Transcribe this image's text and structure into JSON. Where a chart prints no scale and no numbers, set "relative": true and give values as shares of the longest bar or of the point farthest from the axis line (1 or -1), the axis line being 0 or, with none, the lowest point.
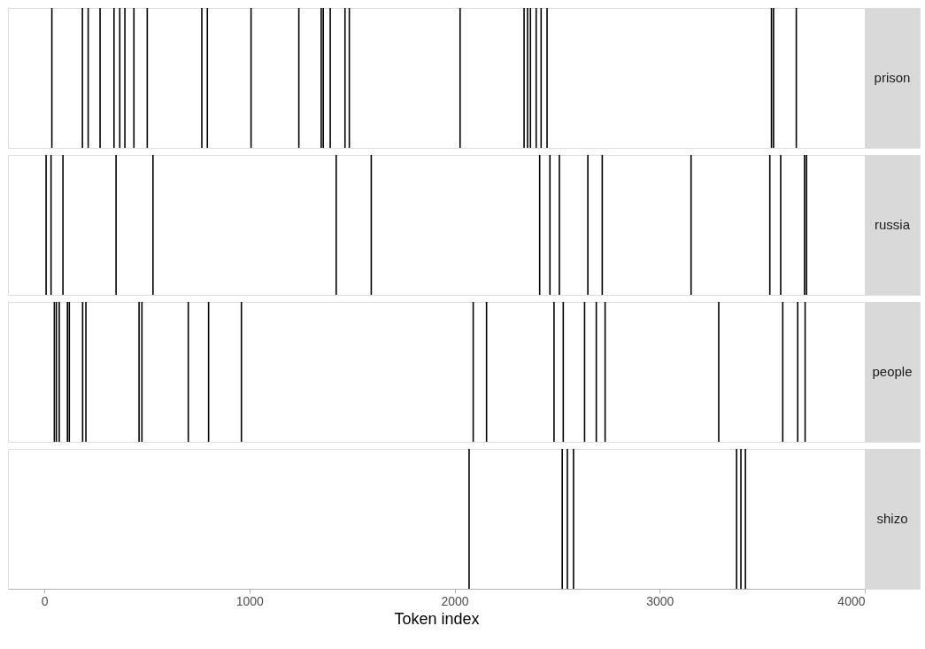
{
  "chart_data": [
    {
      "type": "bar",
      "relative": true,
      "xlim": [
        -177,
        4000
      ],
      "xticks": [
        0,
        1000,
        2000,
        3000,
        4000
      ],
      "tick_labels": false,
      "grid": false,
      "x": [
        37,
        186,
        214,
        272,
        340,
        368,
        393,
        437,
        502,
        768,
        795,
        1008,
        1241,
        1350,
        1360,
        1394,
        1466,
        1487,
        2027,
        2339,
        2356,
        2370,
        2398,
        2422,
        2451,
        3545,
        3555,
        3666
      ],
      "series": [
        {
          "name": "prison",
          "color": "#000000",
          "values": [
            1,
            1,
            1,
            1,
            1,
            1,
            1,
            1,
            1,
            1,
            1,
            1,
            1,
            1,
            1,
            1,
            1,
            1,
            1,
            1,
            1,
            1,
            1,
            1,
            1,
            1,
            1,
            1
          ]
        }
      ]
    },
    {
      "type": "bar",
      "relative": true,
      "xlim": [
        -177,
        4000
      ],
      "xticks": [
        0,
        1000,
        2000,
        3000,
        4000
      ],
      "tick_labels": false,
      "grid": false,
      "x": [
        9,
        33,
        91,
        350,
        530,
        1423,
        1594,
        2415,
        2465,
        2511,
        2650,
        2720,
        3153,
        3537,
        3590,
        3706,
        3716
      ],
      "series": [
        {
          "name": "russia",
          "color": "#000000",
          "values": [
            1,
            1,
            1,
            1,
            1,
            1,
            1,
            1,
            1,
            1,
            1,
            1,
            1,
            1,
            1,
            1,
            1
          ]
        }
      ]
    },
    {
      "type": "bar",
      "relative": true,
      "xlim": [
        -177,
        4000
      ],
      "xticks": [
        0,
        1000,
        2000,
        3000,
        4000
      ],
      "tick_labels": false,
      "grid": false,
      "x": [
        49,
        59,
        73,
        113,
        122,
        187,
        203,
        462,
        476,
        702,
        801,
        961,
        2091,
        2156,
        2485,
        2530,
        2634,
        2691,
        2734,
        3288,
        3600,
        3673,
        3709
      ],
      "series": [
        {
          "name": "people",
          "color": "#000000",
          "values": [
            1,
            1,
            1,
            1,
            1,
            1,
            1,
            1,
            1,
            1,
            1,
            1,
            1,
            1,
            1,
            1,
            1,
            1,
            1,
            1,
            1,
            1,
            1
          ]
        }
      ]
    },
    {
      "type": "bar",
      "relative": true,
      "xlim": [
        -177,
        4000
      ],
      "xticks": [
        0,
        1000,
        2000,
        3000,
        4000
      ],
      "tick_labels": "x",
      "grid": false,
      "xlabel": "Token index",
      "x": [
        2071,
        2525,
        2550,
        2580,
        3375,
        3396,
        3418
      ],
      "series": [
        {
          "name": "shizo",
          "color": "#000000",
          "values": [
            1,
            1,
            1,
            1,
            1,
            1,
            1
          ]
        }
      ]
    }
  ]
}
